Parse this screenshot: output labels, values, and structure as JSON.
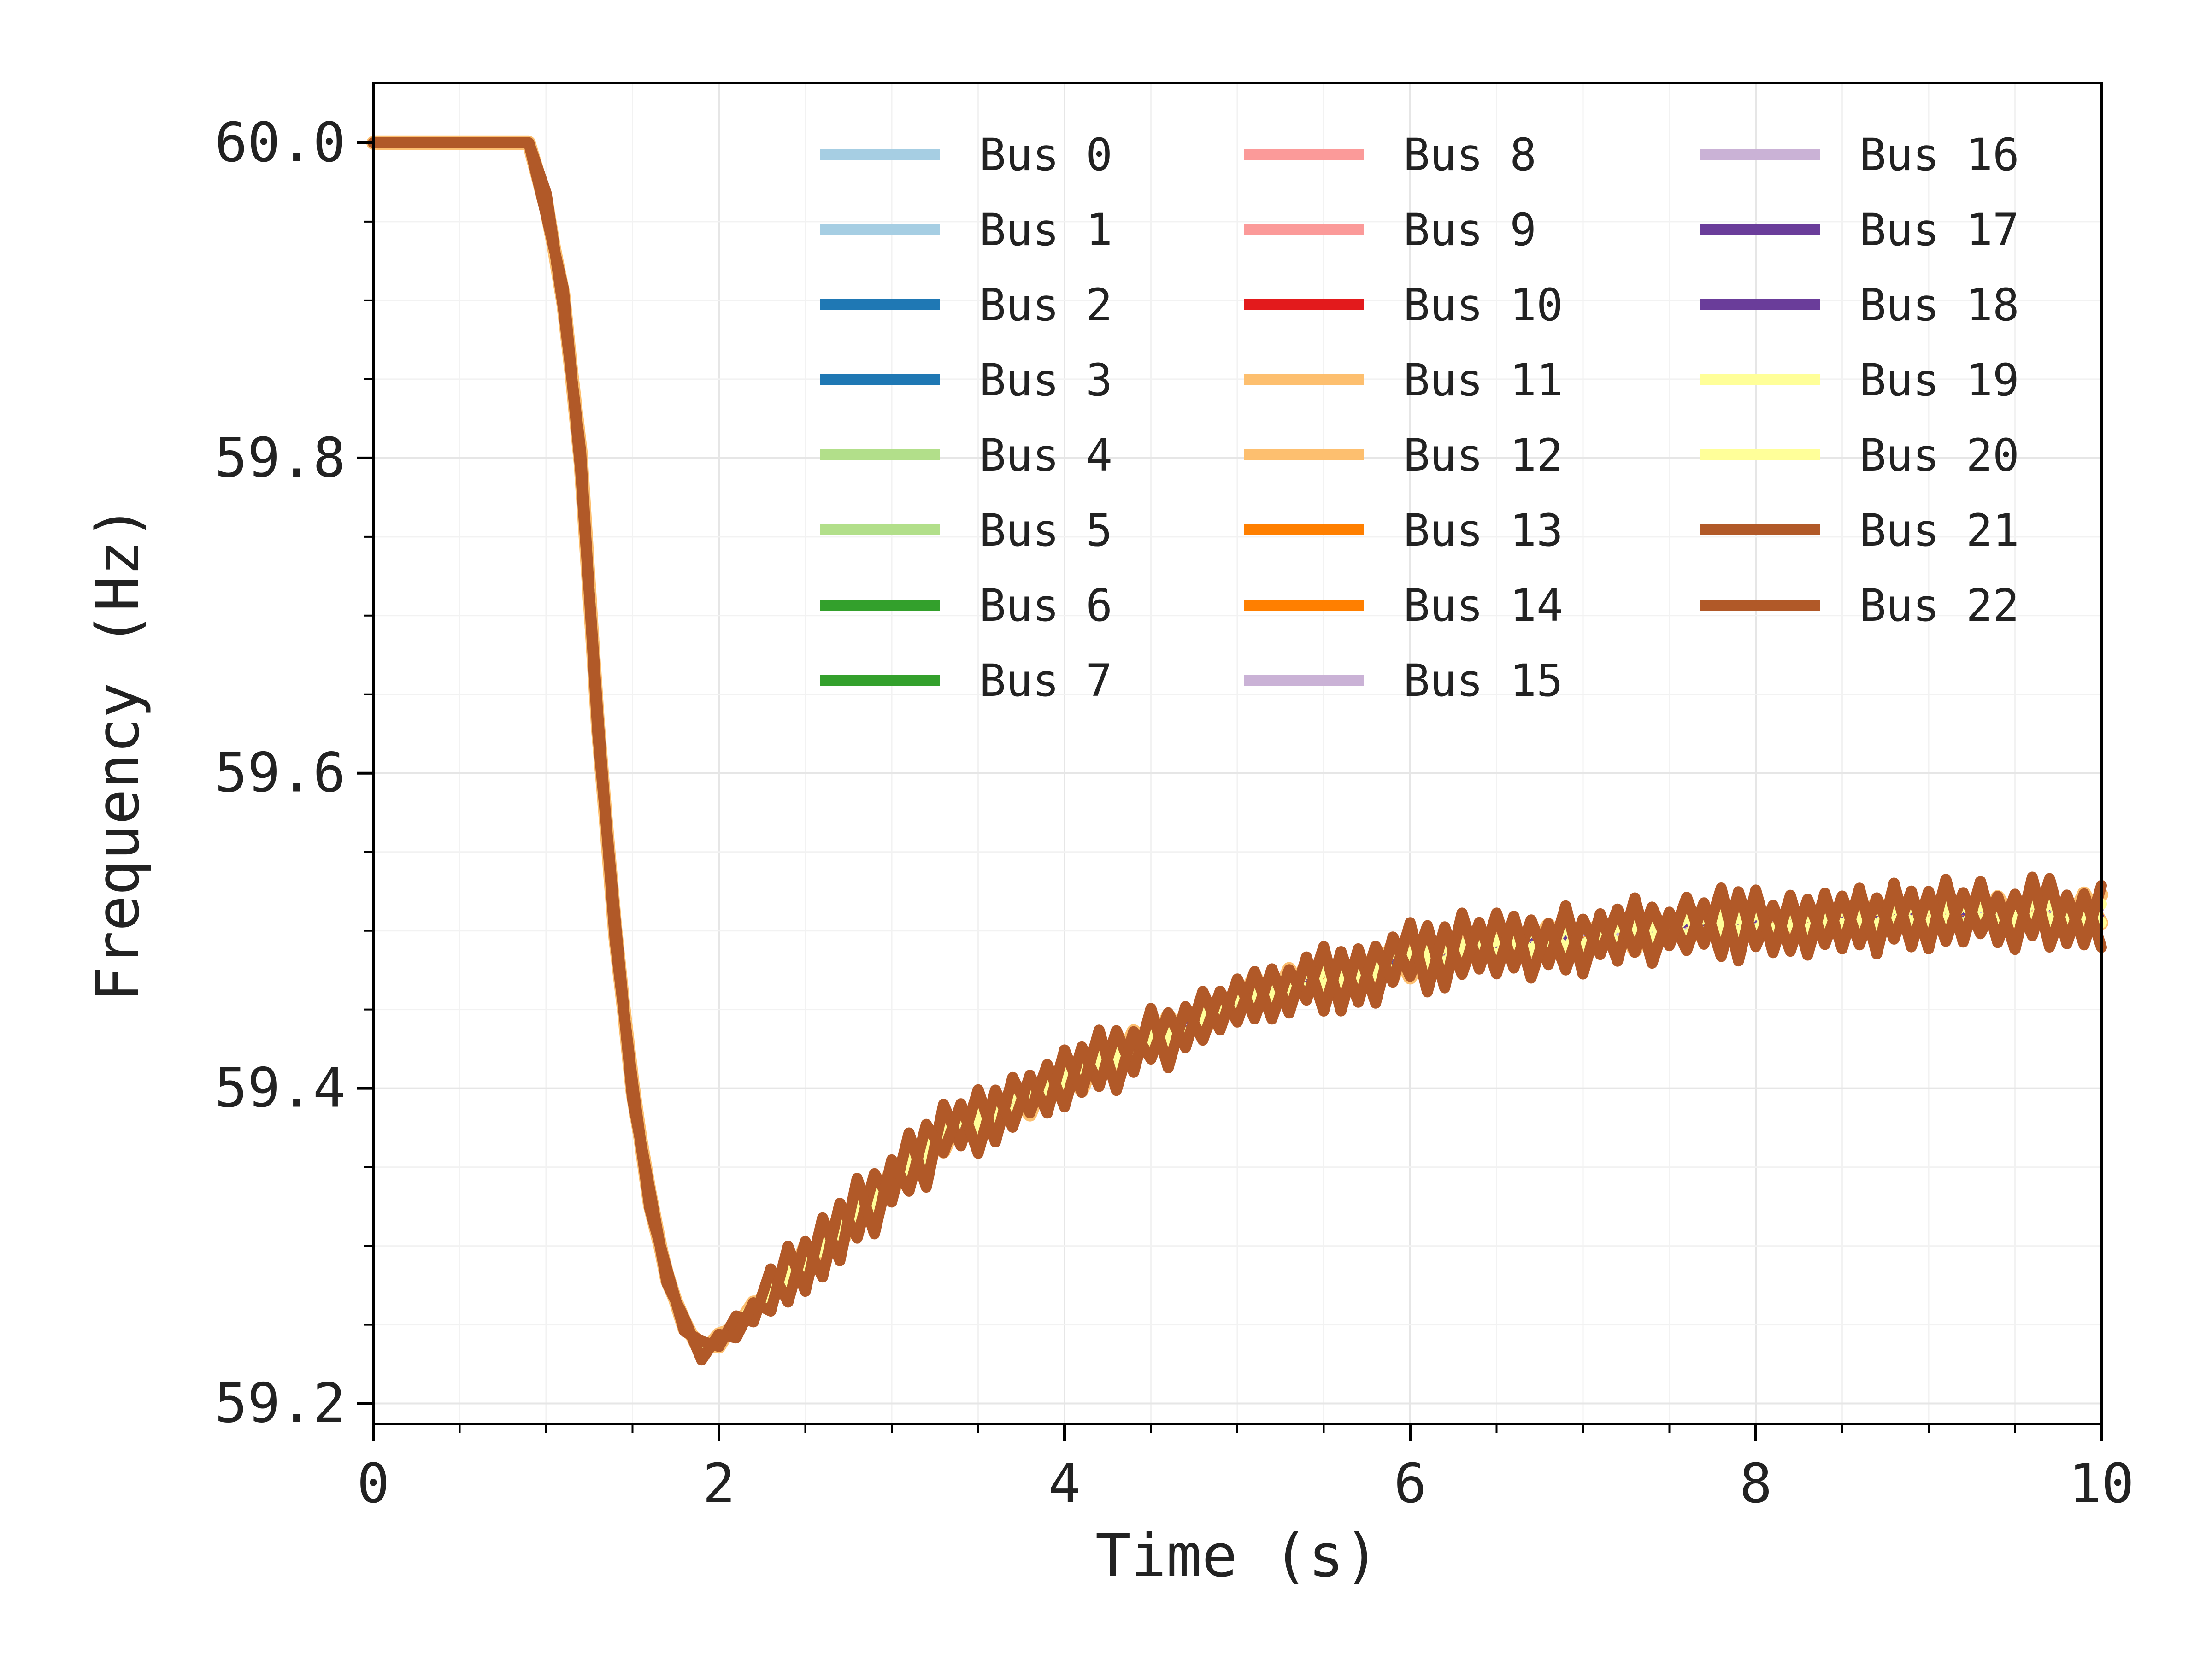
{
  "chart_data": {
    "type": "line",
    "title": "",
    "xlabel": "Time (s)",
    "ylabel": "Frequency (Hz)",
    "xlim": [
      0,
      10
    ],
    "ylim": [
      59.187,
      60.038
    ],
    "xticks": [
      0,
      2,
      4,
      6,
      8,
      10
    ],
    "xtick_labels": [
      "0",
      "2",
      "4",
      "6",
      "8",
      "10"
    ],
    "yticks": [
      59.2,
      59.4,
      59.6,
      59.8,
      60.0
    ],
    "ytick_labels": [
      "59.2",
      "59.4",
      "59.6",
      "59.8",
      "60.0"
    ],
    "grid": true,
    "legend_position": "top-right",
    "legend_columns": 3,
    "x": [
      0,
      0.9,
      1.0,
      1.1,
      1.2,
      1.3,
      1.4,
      1.5,
      1.6,
      1.7,
      1.8,
      1.9,
      2.0,
      2.1,
      2.2,
      2.3,
      2.4,
      2.5,
      2.6,
      2.7,
      2.8,
      2.9,
      3.0,
      3.1,
      3.2,
      3.3,
      3.4,
      3.5,
      3.6,
      3.7,
      3.8,
      3.9,
      4.0,
      4.1,
      4.2,
      4.3,
      4.4,
      4.5,
      4.6,
      4.7,
      4.8,
      4.9,
      5.0,
      5.1,
      5.2,
      5.3,
      5.4,
      5.5,
      5.6,
      5.7,
      5.8,
      5.9,
      6.0,
      6.1,
      6.2,
      6.3,
      6.4,
      6.5,
      6.6,
      6.7,
      6.8,
      6.9,
      7.0,
      7.1,
      7.2,
      7.3,
      7.4,
      7.5,
      7.6,
      7.7,
      7.8,
      7.9,
      8.0,
      8.1,
      8.2,
      8.3,
      8.4,
      8.5,
      8.6,
      8.7,
      8.8,
      8.9,
      9.0,
      9.1,
      9.2,
      9.3,
      9.4,
      9.5,
      9.6,
      9.7,
      9.8,
      9.9,
      10.0
    ],
    "base_values": [
      60.0,
      60.0,
      59.96,
      59.9,
      59.8,
      59.63,
      59.5,
      59.4,
      59.33,
      59.28,
      59.25,
      59.235,
      59.24,
      59.25,
      59.26,
      59.27,
      59.28,
      59.29,
      59.3,
      59.31,
      59.32,
      59.33,
      59.34,
      59.35,
      59.36,
      59.37,
      59.375,
      59.38,
      59.385,
      59.39,
      59.395,
      59.4,
      59.405,
      59.41,
      59.415,
      59.42,
      59.425,
      59.43,
      59.435,
      59.44,
      59.445,
      59.45,
      59.455,
      59.46,
      59.462,
      59.465,
      59.468,
      59.47,
      59.472,
      59.475,
      59.477,
      59.48,
      59.482,
      59.484,
      59.486,
      59.488,
      59.49,
      59.491,
      59.492,
      59.493,
      59.494,
      59.495,
      59.496,
      59.497,
      59.498,
      59.499,
      59.5,
      59.501,
      59.502,
      59.503,
      59.504,
      59.504,
      59.505,
      59.505,
      59.506,
      59.506,
      59.507,
      59.507,
      59.508,
      59.508,
      59.509,
      59.509,
      59.51,
      59.51,
      59.51,
      59.511,
      59.511,
      59.511,
      59.512,
      59.512,
      59.512,
      59.512,
      59.512
    ],
    "series": [
      {
        "name": "Bus 0",
        "color": "#a6cee3",
        "width": 3.0,
        "noise": 0.004,
        "drop_shift": -0.1
      },
      {
        "name": "Bus 1",
        "color": "#a6cee3",
        "width": 3.0,
        "noise": 0.004,
        "drop_shift": -0.08
      },
      {
        "name": "Bus 2",
        "color": "#1f78b4",
        "width": 2.0,
        "noise": 0.002,
        "drop_shift": -0.05
      },
      {
        "name": "Bus 3",
        "color": "#1f78b4",
        "width": 2.0,
        "noise": 0.002,
        "drop_shift": -0.04
      },
      {
        "name": "Bus 4",
        "color": "#b2df8a",
        "width": 2.0,
        "noise": 0.002,
        "drop_shift": -0.02
      },
      {
        "name": "Bus 5",
        "color": "#b2df8a",
        "width": 2.0,
        "noise": 0.002,
        "drop_shift": -0.02
      },
      {
        "name": "Bus 6",
        "color": "#33a02c",
        "width": 2.0,
        "noise": 0.002,
        "drop_shift": -0.01
      },
      {
        "name": "Bus 7",
        "color": "#33a02c",
        "width": 2.0,
        "noise": 0.002,
        "drop_shift": -0.01
      },
      {
        "name": "Bus 8",
        "color": "#fb9a99",
        "width": 2.0,
        "noise": 0.002,
        "drop_shift": 0.0
      },
      {
        "name": "Bus 9",
        "color": "#fb9a99",
        "width": 2.0,
        "noise": 0.002,
        "drop_shift": 0.0
      },
      {
        "name": "Bus 10",
        "color": "#e31a1c",
        "width": 2.0,
        "noise": 0.002,
        "drop_shift": 0.01
      },
      {
        "name": "Bus 11",
        "color": "#fdbf6f",
        "width": 5.0,
        "noise": 0.006,
        "drop_shift": 0.02
      },
      {
        "name": "Bus 12",
        "color": "#fdbf6f",
        "width": 5.0,
        "noise": 0.006,
        "drop_shift": 0.02
      },
      {
        "name": "Bus 13",
        "color": "#ff7f00",
        "width": 2.0,
        "noise": 0.002,
        "drop_shift": 0.01
      },
      {
        "name": "Bus 14",
        "color": "#ff7f00",
        "width": 2.0,
        "noise": 0.002,
        "drop_shift": 0.01
      },
      {
        "name": "Bus 15",
        "color": "#cab2d6",
        "width": 2.0,
        "noise": 0.002,
        "drop_shift": 0.0
      },
      {
        "name": "Bus 16",
        "color": "#cab2d6",
        "width": 2.0,
        "noise": 0.002,
        "drop_shift": 0.0
      },
      {
        "name": "Bus 17",
        "color": "#6a3d9a",
        "width": 2.0,
        "noise": 0.002,
        "drop_shift": 0.0
      },
      {
        "name": "Bus 18",
        "color": "#6a3d9a",
        "width": 2.0,
        "noise": 0.002,
        "drop_shift": 0.0
      },
      {
        "name": "Bus 19",
        "color": "#ffff99",
        "width": 4.0,
        "noise": 0.004,
        "drop_shift": 0.02
      },
      {
        "name": "Bus 20",
        "color": "#ffff99",
        "width": 4.0,
        "noise": 0.004,
        "drop_shift": 0.02
      },
      {
        "name": "Bus 21",
        "color": "#b15928",
        "width": 4.0,
        "noise": 0.012,
        "drop_shift": 0.03
      },
      {
        "name": "Bus 22",
        "color": "#b15928",
        "width": 4.0,
        "noise": 0.012,
        "drop_shift": 0.03
      }
    ]
  }
}
